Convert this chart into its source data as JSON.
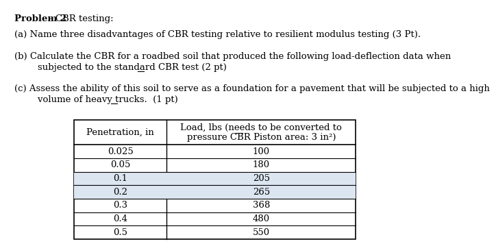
{
  "title_bold": "Problem 2",
  "title_normal": "- CBR testing:",
  "part_a": "(a) Name three disadvantages of CBR testing relative to resilient modulus testing (3 Pt).",
  "part_b_line1": "(b) Calculate the CBR for a roadbed soil that produced the following load-deflection data when",
  "part_b_line2_prefix": "        subjected to the standard CBR test (2 ",
  "part_b_line2_pt": "pt",
  "part_b_line2_suffix": ")",
  "part_c_line1": "(c) Assess the ability of this soil to serve as a foundation for a pavement that will be subjected to a high",
  "part_c_line2_prefix": "        volume of heavy trucks.  (1 ",
  "part_c_line2_pt": "pt",
  "part_c_line2_suffix": ")",
  "col1_header": "Penetration, in",
  "col2_header_line1": "Load, lbs (needs to be converted to",
  "col2_header_line2": "pressure CBR Piston area: 3 in²)",
  "col2_lbs_pre": "Load, ",
  "col2_lbs_word": "lbs",
  "penetrations": [
    "0.025",
    "0.05",
    "0.1",
    "0.2",
    "0.3",
    "0.4",
    "0.5"
  ],
  "loads": [
    "100",
    "180",
    "205",
    "265",
    "368",
    "480",
    "550"
  ],
  "shaded_rows": [
    2,
    3
  ],
  "shaded_color": "#dce6f1",
  "font_size_text": 9.5,
  "font_size_table": 9.5
}
